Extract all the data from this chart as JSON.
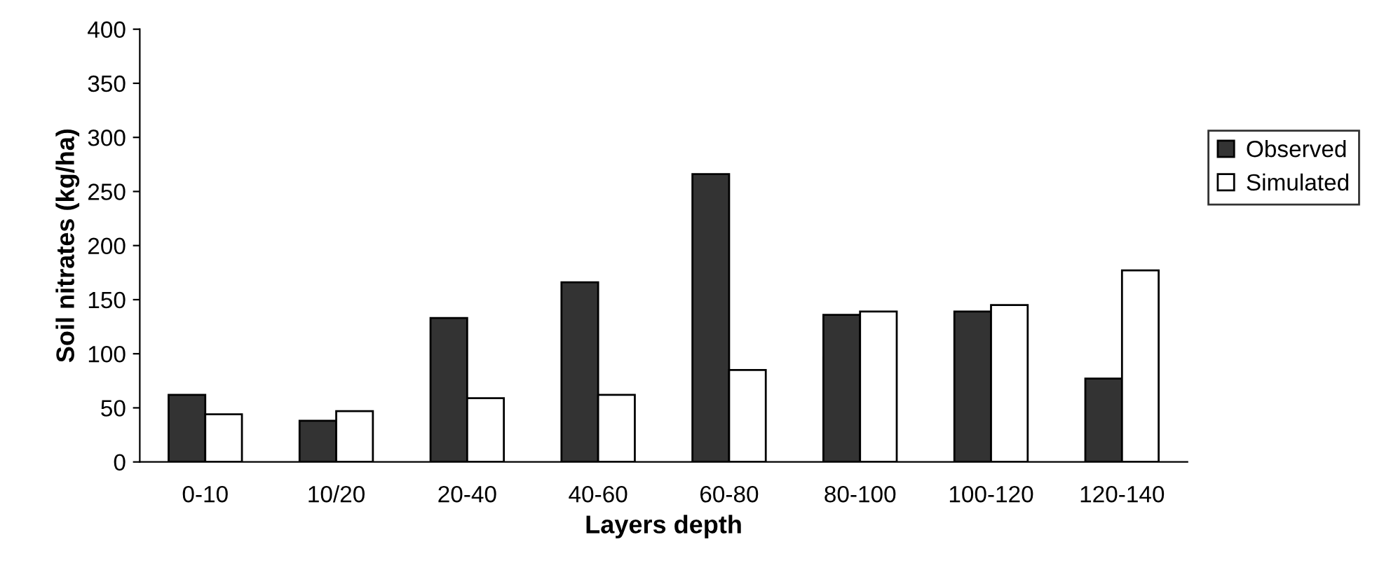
{
  "chart_data": {
    "type": "bar",
    "xlabel": "Layers depth",
    "ylabel": "Soil nitrates (kg/ha)",
    "categories": [
      "0-10",
      "10/20",
      "20-40",
      "40-60",
      "60-80",
      "80-100",
      "100-120",
      "120-140"
    ],
    "series": [
      {
        "name": "Observed",
        "color": "#333333",
        "values": [
          62,
          38,
          133,
          166,
          266,
          136,
          139,
          77
        ]
      },
      {
        "name": "Simulated",
        "color": "#ffffff",
        "values": [
          44,
          47,
          59,
          62,
          85,
          139,
          145,
          177
        ]
      }
    ],
    "ylim": [
      0,
      400
    ],
    "yticks": [
      0,
      50,
      100,
      150,
      200,
      250,
      300,
      350,
      400
    ],
    "grid": false,
    "legend": "right"
  }
}
